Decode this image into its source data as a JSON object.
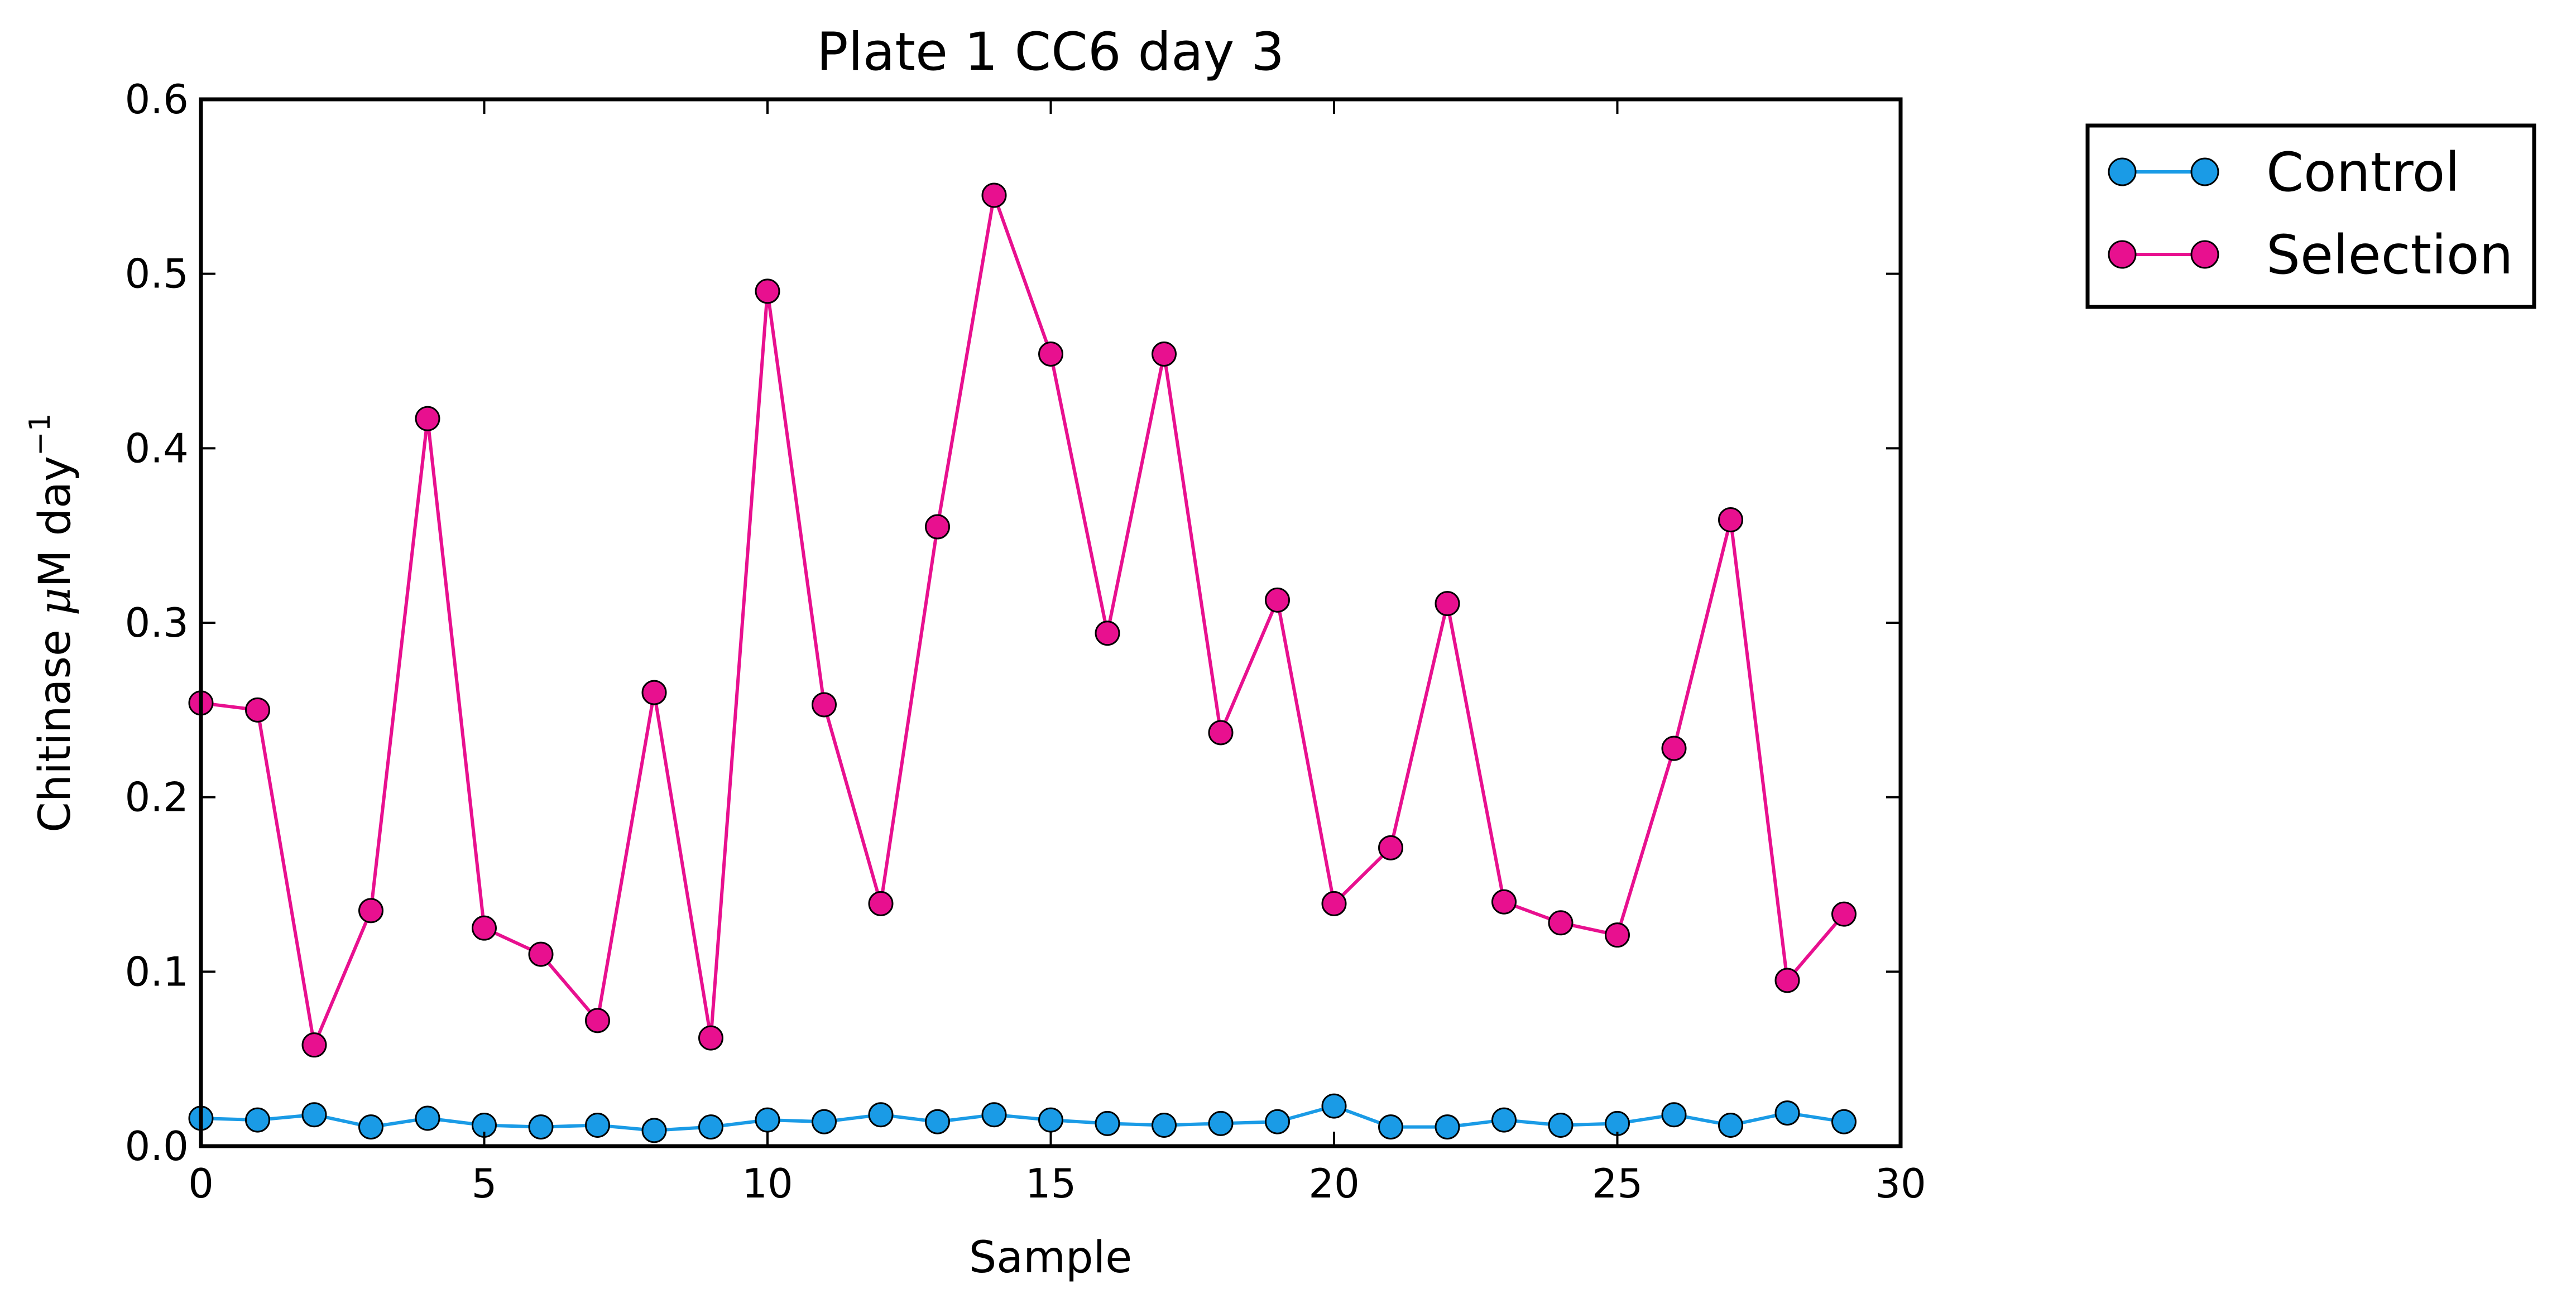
{
  "chart_data": {
    "type": "line",
    "title": "Plate 1 CC6 day 3",
    "xlabel": "Sample",
    "ylabel": {
      "main": "Chitinase ",
      "mu": "μ",
      "unit": "M day",
      "sup": "−1"
    },
    "xlim": [
      0,
      30
    ],
    "ylim": [
      0,
      0.6
    ],
    "xticks": [
      0,
      5,
      10,
      15,
      20,
      25,
      30
    ],
    "xtick_labels": [
      "0",
      "5",
      "10",
      "15",
      "20",
      "25",
      "30"
    ],
    "yticks": [
      0.0,
      0.1,
      0.2,
      0.3,
      0.4,
      0.5,
      0.6
    ],
    "ytick_labels": [
      "0.0",
      "0.1",
      "0.2",
      "0.3",
      "0.4",
      "0.5",
      "0.6"
    ],
    "grid": false,
    "legend_position": "outside-top-right",
    "x": [
      0,
      1,
      2,
      3,
      4,
      5,
      6,
      7,
      8,
      9,
      10,
      11,
      12,
      13,
      14,
      15,
      16,
      17,
      18,
      19,
      20,
      21,
      22,
      23,
      24,
      25,
      26,
      27,
      28,
      29
    ],
    "series": [
      {
        "name": "Control",
        "color": "#1a9be6",
        "marker": "circle",
        "values": [
          0.016,
          0.015,
          0.018,
          0.011,
          0.016,
          0.012,
          0.011,
          0.012,
          0.009,
          0.011,
          0.015,
          0.014,
          0.018,
          0.014,
          0.018,
          0.015,
          0.013,
          0.012,
          0.013,
          0.014,
          0.023,
          0.011,
          0.011,
          0.015,
          0.012,
          0.013,
          0.018,
          0.012,
          0.019,
          0.014
        ]
      },
      {
        "name": "Selection",
        "color": "#e8108f",
        "marker": "circle",
        "values": [
          0.254,
          0.25,
          0.058,
          0.135,
          0.417,
          0.125,
          0.11,
          0.072,
          0.26,
          0.062,
          0.49,
          0.253,
          0.139,
          0.355,
          0.545,
          0.454,
          0.294,
          0.454,
          0.237,
          0.313,
          0.139,
          0.171,
          0.311,
          0.14,
          0.128,
          0.121,
          0.228,
          0.359,
          0.095,
          0.133
        ]
      }
    ]
  }
}
